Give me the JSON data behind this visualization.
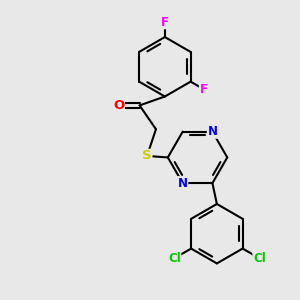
{
  "bg_color": "#e8e8e8",
  "bond_color": "#000000",
  "bond_width": 1.5,
  "atom_colors": {
    "F": "#ff00ff",
    "O": "#ff0000",
    "S": "#cccc00",
    "N": "#0000ff",
    "Cl": "#00cc00",
    "C": "#000000"
  },
  "font_size": 8.5,
  "figsize": [
    3.0,
    3.0
  ],
  "dpi": 100
}
